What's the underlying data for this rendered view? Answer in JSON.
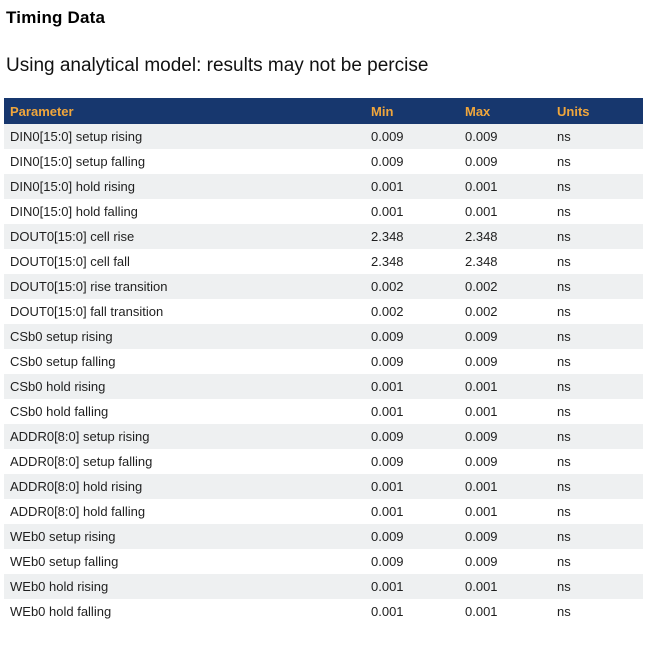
{
  "page": {
    "title": "Timing Data",
    "subtitle": "Using analytical model: results may not be percise"
  },
  "colors": {
    "table_header_bg": "#17376e",
    "table_header_text": "#f0a63c",
    "row_stripe_bg": "#eef0f1",
    "row_text": "#1f1f1f"
  },
  "table": {
    "headers": [
      "Parameter",
      "Min",
      "Max",
      "Units"
    ],
    "rows": [
      {
        "parameter": "DIN0[15:0] setup rising",
        "min": "0.009",
        "max": "0.009",
        "units": "ns"
      },
      {
        "parameter": "DIN0[15:0] setup falling",
        "min": "0.009",
        "max": "0.009",
        "units": "ns"
      },
      {
        "parameter": "DIN0[15:0] hold rising",
        "min": "0.001",
        "max": "0.001",
        "units": "ns"
      },
      {
        "parameter": "DIN0[15:0] hold falling",
        "min": "0.001",
        "max": "0.001",
        "units": "ns"
      },
      {
        "parameter": "DOUT0[15:0] cell rise",
        "min": "2.348",
        "max": "2.348",
        "units": "ns"
      },
      {
        "parameter": "DOUT0[15:0] cell fall",
        "min": "2.348",
        "max": "2.348",
        "units": "ns"
      },
      {
        "parameter": "DOUT0[15:0] rise transition",
        "min": "0.002",
        "max": "0.002",
        "units": "ns"
      },
      {
        "parameter": "DOUT0[15:0] fall transition",
        "min": "0.002",
        "max": "0.002",
        "units": "ns"
      },
      {
        "parameter": "CSb0 setup rising",
        "min": "0.009",
        "max": "0.009",
        "units": "ns"
      },
      {
        "parameter": "CSb0 setup falling",
        "min": "0.009",
        "max": "0.009",
        "units": "ns"
      },
      {
        "parameter": "CSb0 hold rising",
        "min": "0.001",
        "max": "0.001",
        "units": "ns"
      },
      {
        "parameter": "CSb0 hold falling",
        "min": "0.001",
        "max": "0.001",
        "units": "ns"
      },
      {
        "parameter": "ADDR0[8:0] setup rising",
        "min": "0.009",
        "max": "0.009",
        "units": "ns"
      },
      {
        "parameter": "ADDR0[8:0] setup falling",
        "min": "0.009",
        "max": "0.009",
        "units": "ns"
      },
      {
        "parameter": "ADDR0[8:0] hold rising",
        "min": "0.001",
        "max": "0.001",
        "units": "ns"
      },
      {
        "parameter": "ADDR0[8:0] hold falling",
        "min": "0.001",
        "max": "0.001",
        "units": "ns"
      },
      {
        "parameter": "WEb0 setup rising",
        "min": "0.009",
        "max": "0.009",
        "units": "ns"
      },
      {
        "parameter": "WEb0 setup falling",
        "min": "0.009",
        "max": "0.009",
        "units": "ns"
      },
      {
        "parameter": "WEb0 hold rising",
        "min": "0.001",
        "max": "0.001",
        "units": "ns"
      },
      {
        "parameter": "WEb0 hold falling",
        "min": "0.001",
        "max": "0.001",
        "units": "ns"
      }
    ]
  }
}
